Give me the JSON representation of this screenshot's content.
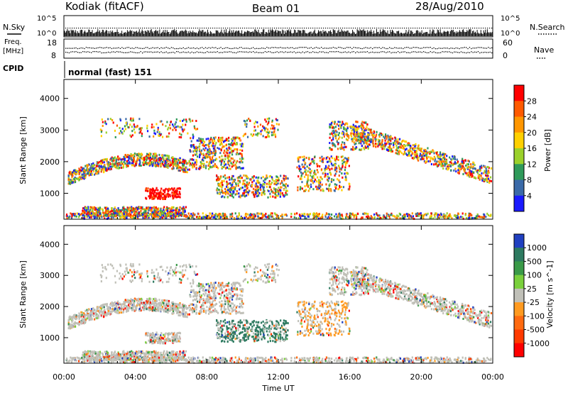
{
  "header": {
    "station": "Kodiak (fitACF)",
    "beam": "Beam 01",
    "date": "28/Aug/2010"
  },
  "top_panels": {
    "nsky_label": "N.Sky",
    "nsearch_label": "N.Search",
    "count_ticks": [
      "10^5",
      "10^0"
    ],
    "freq_label": "Freq.",
    "freq_unit": "[MHz]",
    "freq_ticks": [
      "18",
      "8"
    ],
    "nave_label": "Nave",
    "nave_ticks": [
      "60",
      "0"
    ],
    "cpid_label": "CPID",
    "cpid_value": "normal (fast) 151"
  },
  "chart_data": [
    {
      "type": "heatmap",
      "name": "power",
      "ylabel": "Slant Range [km]",
      "yticks": [
        "4000",
        "3000",
        "2000",
        "1000"
      ],
      "ylim": [
        180,
        4600
      ],
      "colorbar": {
        "label": "Power [dB]",
        "ticks": [
          "28",
          "24",
          "20",
          "16",
          "12",
          "8",
          "4"
        ],
        "colors": [
          "#ff0000",
          "#ff5a00",
          "#ff9600",
          "#ffd000",
          "#9bd12b",
          "#2f9a5a",
          "#3b6aa8",
          "#1a1aff"
        ]
      }
    },
    {
      "type": "heatmap",
      "name": "velocity",
      "ylabel": "Slant Range [km]",
      "yticks": [
        "4000",
        "3000",
        "2000",
        "1000"
      ],
      "ylim": [
        180,
        4600
      ],
      "xlabel": "Time UT",
      "xticks": [
        "00:00",
        "04:00",
        "08:00",
        "12:00",
        "16:00",
        "20:00",
        "00:00"
      ],
      "colorbar": {
        "label": "Velocity [m s^-1]",
        "ticks": [
          "1000",
          "500",
          "100",
          "25",
          "-25",
          "-100",
          "-500",
          "-1000"
        ],
        "colors": [
          "#2040c0",
          "#2d7a60",
          "#3a9a48",
          "#7ad03c",
          "#c0c0b8",
          "#ff9a20",
          "#ff6a10",
          "#ff3a00",
          "#ff0000"
        ]
      }
    }
  ]
}
